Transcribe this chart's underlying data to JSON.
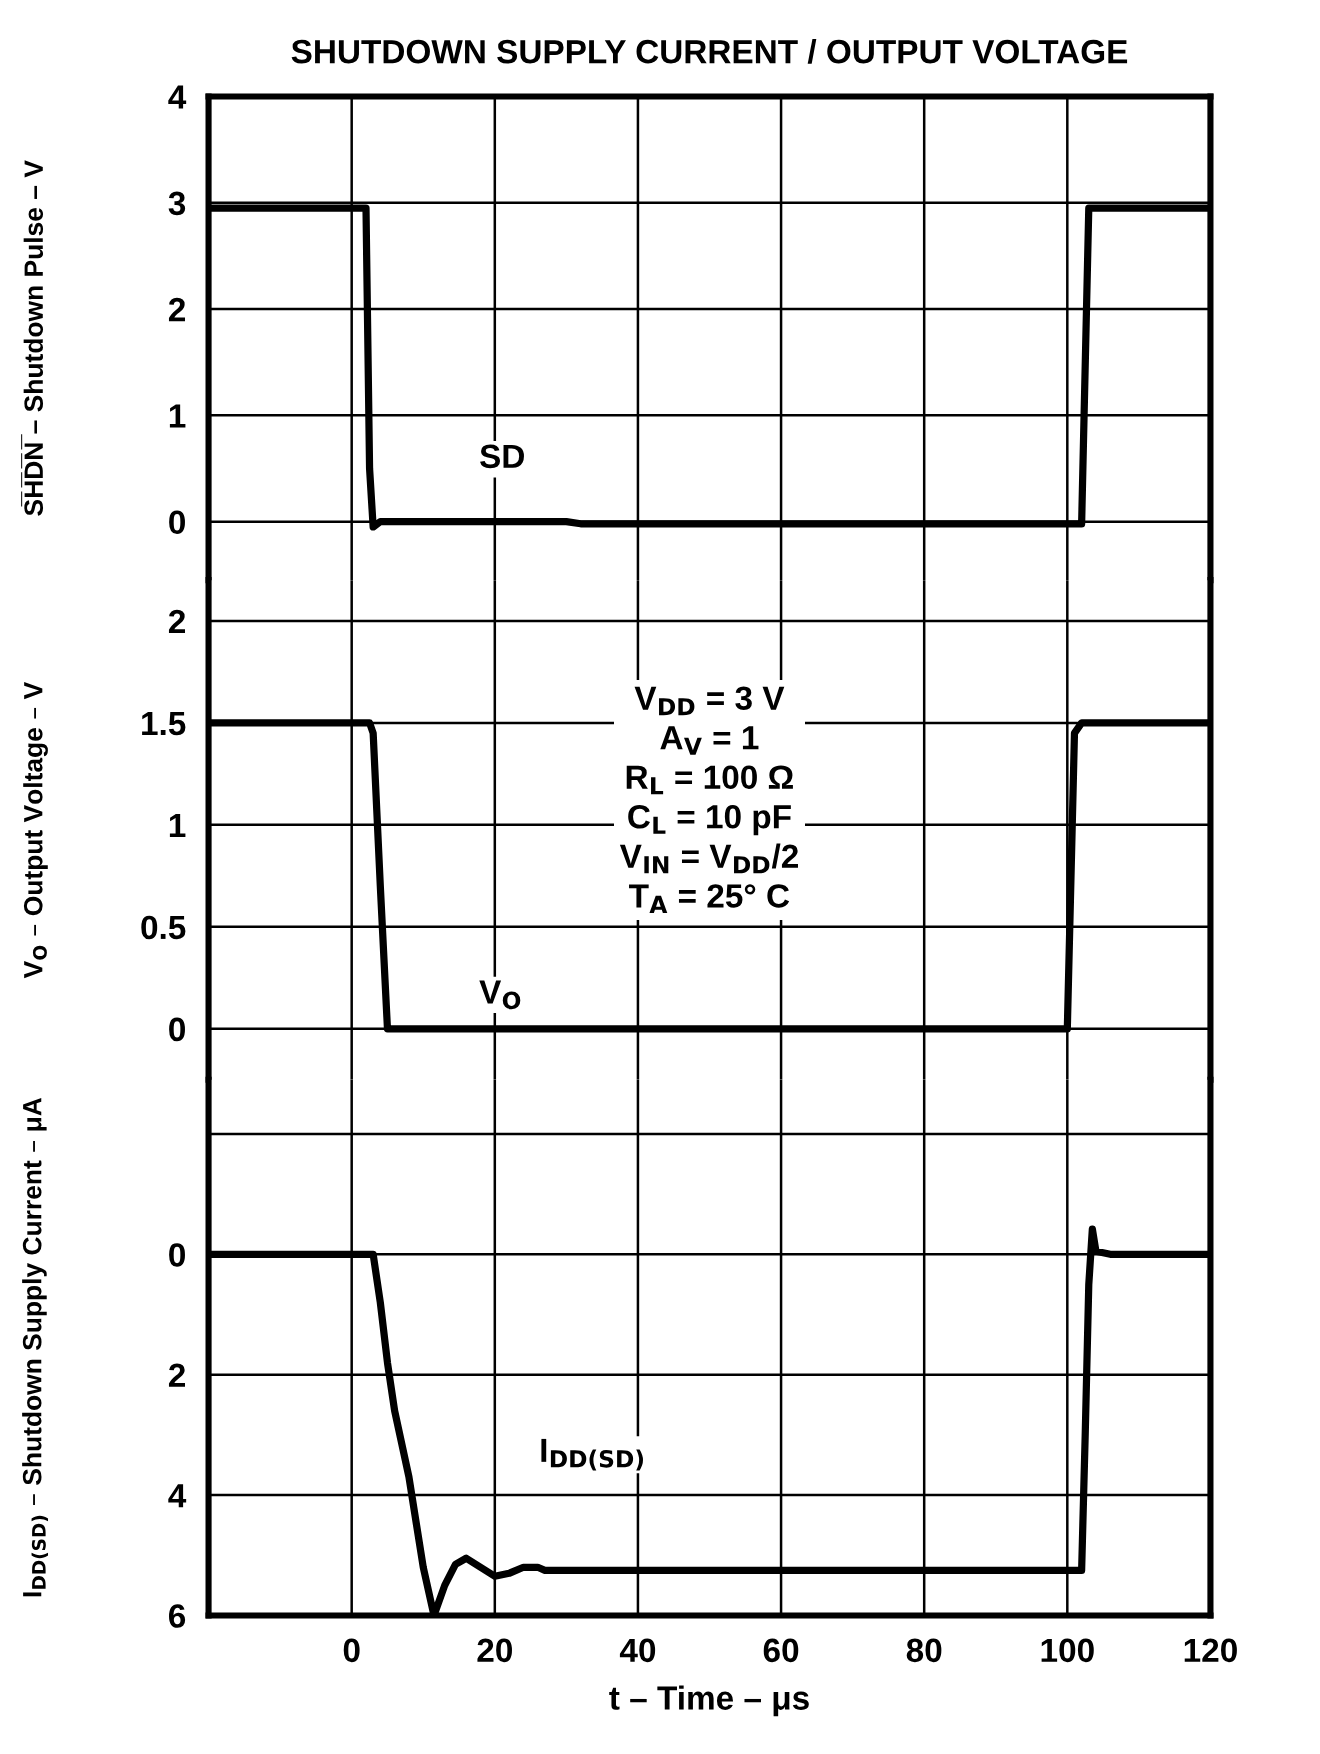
{
  "chart_data": [
    {
      "type": "line",
      "title": "SHUTDOWN SUPPLY CURRENT / OUTPUT VOLTAGE",
      "ylabel": "S̅H̅D̅N̅ – Shutdown Pulse – V",
      "xlim": [
        -20,
        120
      ],
      "xticks": [
        0,
        20,
        40,
        60,
        80,
        100,
        120
      ],
      "ylim": [
        -0.55,
        4
      ],
      "yticks": [
        0,
        1,
        2,
        3,
        4
      ],
      "grid": true,
      "tick_labels": "y",
      "marker": "none",
      "line_style": "solid",
      "series": [
        {
          "name": "SD",
          "color": "#000000",
          "x": [
            -20,
            -10,
            2,
            2.5,
            3,
            4,
            30,
            32,
            102,
            103,
            104,
            110,
            120
          ],
          "values": [
            2.95,
            2.95,
            2.95,
            0.5,
            -0.05,
            0,
            0,
            -0.02,
            -0.02,
            2.95,
            2.95,
            2.95,
            2.95
          ]
        }
      ]
    },
    {
      "type": "line",
      "ylabel": "V$_{O}$ – Output Voltage – V",
      "xlim": [
        -20,
        120
      ],
      "xticks": [
        0,
        20,
        40,
        60,
        80,
        100,
        120
      ],
      "ylim": [
        -0.25,
        2.2
      ],
      "yticks": [
        0,
        0.5,
        1,
        1.5,
        2
      ],
      "grid": true,
      "tick_labels": "y",
      "marker": "none",
      "line_style": "solid",
      "series": [
        {
          "name": "V$_{O}$",
          "color": "#000000",
          "x": [
            -20,
            2.5,
            3,
            4,
            5,
            60,
            100,
            101,
            102,
            120
          ],
          "values": [
            1.5,
            1.5,
            1.45,
            0.7,
            0,
            0,
            0,
            1.45,
            1.5,
            1.5
          ]
        }
      ],
      "annotations": [
        "V$_{DD}$ = 3 V\nA$_{V}$ = 1\nR$_{L}$ = 100 Ω\nC$_{L}$ = 10 pF\nV$_{IN}$ = V$_{DD}$/2\nT$_{A}$ = 25° C"
      ]
    },
    {
      "type": "line",
      "ylabel": "I$_{DD(SD)}$ – Shutdown Supply Current – μA",
      "xlabel": "t – Time – μs",
      "xlim": [
        -20,
        120
      ],
      "xticks": [
        0,
        20,
        40,
        60,
        80,
        100,
        120
      ],
      "ylim": [
        6,
        -2.9
      ],
      "yticks": [
        {
          "value": -2,
          "label": null
        },
        0,
        2,
        4,
        6
      ],
      "grid": true,
      "marker": "none",
      "line_style": "solid",
      "series": [
        {
          "name": "I$_{DD(SD)}$",
          "color": "#000000",
          "x": [
            -20,
            3,
            4,
            5,
            6,
            8,
            10,
            11.5,
            13,
            14.5,
            16,
            18,
            20,
            22,
            24,
            26,
            27,
            60,
            102,
            102.5,
            103,
            103.5,
            104,
            106,
            120
          ],
          "values": [
            0,
            0,
            0.8,
            1.8,
            2.6,
            3.7,
            5.2,
            6,
            5.5,
            5.15,
            5.05,
            5.2,
            5.35,
            5.3,
            5.2,
            5.2,
            5.25,
            5.25,
            5.25,
            3,
            0.5,
            -0.42,
            -0.05,
            0,
            0
          ]
        }
      ]
    }
  ]
}
